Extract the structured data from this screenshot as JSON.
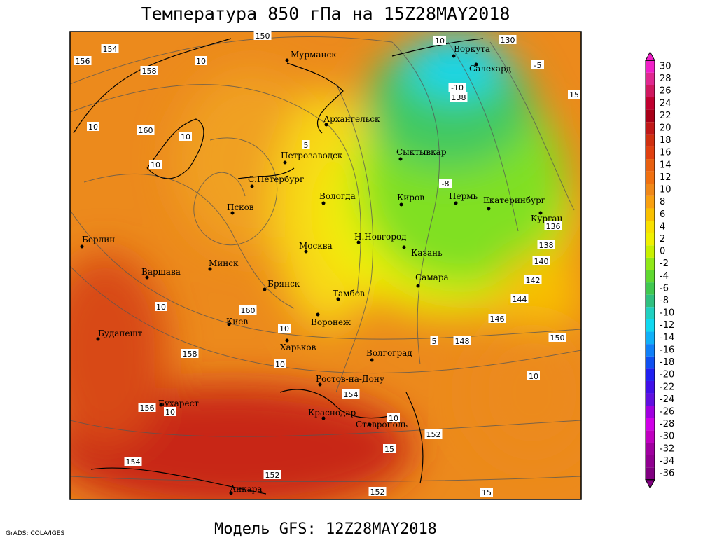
{
  "header": {
    "title": "Температура 850 гПа на 15Z28MAY2018"
  },
  "footer": {
    "model": "Модель GFS: 12Z28MAY2018",
    "credit": "GrADS: COLA/IGES"
  },
  "cities": [
    "Мурманск",
    "Воркута",
    "Салехард",
    "Архангельск",
    "Сыктывкар",
    "Петрозаводск",
    "С.Петербург",
    "Вологда",
    "Киров",
    "Пермь",
    "Екатеринбург",
    "Курган",
    "Псков",
    "Н.Новгород",
    "Казань",
    "Москва",
    "Берлин",
    "Варшава",
    "Минск",
    "Самара",
    "Брянск",
    "Тамбов",
    "Киев",
    "Воронеж",
    "Будапешт",
    "Харьков",
    "Волгоград",
    "Ростов-на-Дону",
    "Бухарест",
    "Краснодар",
    "Ставрополь",
    "Анкара"
  ],
  "contour_labels": [
    154,
    156,
    158,
    10,
    150,
    10,
    160,
    10,
    10,
    5,
    130,
    10,
    -5,
    -10,
    138,
    15,
    -8,
    136,
    138,
    140,
    142,
    144,
    146,
    148,
    150,
    5,
    10,
    160,
    10,
    158,
    10,
    154,
    10,
    156,
    10,
    10,
    152,
    15,
    154,
    152,
    152,
    15
  ],
  "colorbar": {
    "levels": [
      30,
      28,
      26,
      24,
      22,
      20,
      18,
      16,
      14,
      12,
      10,
      8,
      6,
      4,
      2,
      0,
      -2,
      -4,
      -6,
      -8,
      -10,
      -12,
      -14,
      -16,
      -18,
      -20,
      -22,
      -24,
      -26,
      -28,
      -30,
      -32,
      -34,
      -36
    ],
    "colors": [
      "#f020c8",
      "#e02890",
      "#d01860",
      "#c00030",
      "#a80018",
      "#c01818",
      "#d03010",
      "#e04010",
      "#e86010",
      "#f07010",
      "#f08818",
      "#f8a010",
      "#f8c000",
      "#f8e000",
      "#f0f000",
      "#c8f000",
      "#90e818",
      "#60d830",
      "#40c850",
      "#30c080",
      "#20d0c0",
      "#10d8f0",
      "#10b0f8",
      "#1080f8",
      "#1050f0",
      "#2020f0",
      "#4010e8",
      "#6010e0",
      "#a000e0",
      "#d000e8",
      "#c000c0",
      "#a000a0",
      "#900090",
      "#800080"
    ]
  }
}
